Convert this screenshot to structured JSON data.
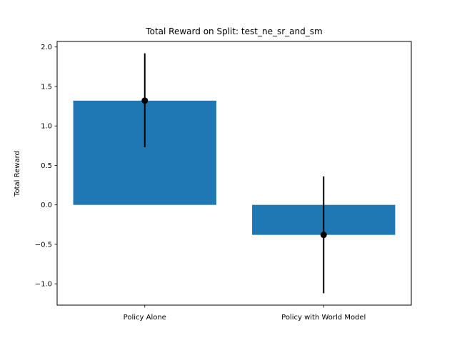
{
  "chart_data": {
    "type": "bar",
    "title": "Total Reward on Split: test_ne_sr_and_sm",
    "xlabel": "",
    "ylabel": "Total Reward",
    "categories": [
      "Policy Alone",
      "Policy with World Model"
    ],
    "values": [
      1.32,
      -0.38
    ],
    "error_low": [
      0.73,
      -1.12
    ],
    "error_high": [
      1.92,
      0.36
    ],
    "ylim": [
      -1.27,
      2.07
    ],
    "yticks": [
      -1.0,
      -0.5,
      0.0,
      0.5,
      1.0,
      1.5,
      2.0
    ],
    "ytick_labels": [
      "−1.0",
      "−0.5",
      "0.0",
      "0.5",
      "1.0",
      "1.5",
      "2.0"
    ],
    "grid": false,
    "legend": "none",
    "colors": {
      "bar": "#1f77b4",
      "error": "#000000",
      "marker": "#000000"
    }
  }
}
